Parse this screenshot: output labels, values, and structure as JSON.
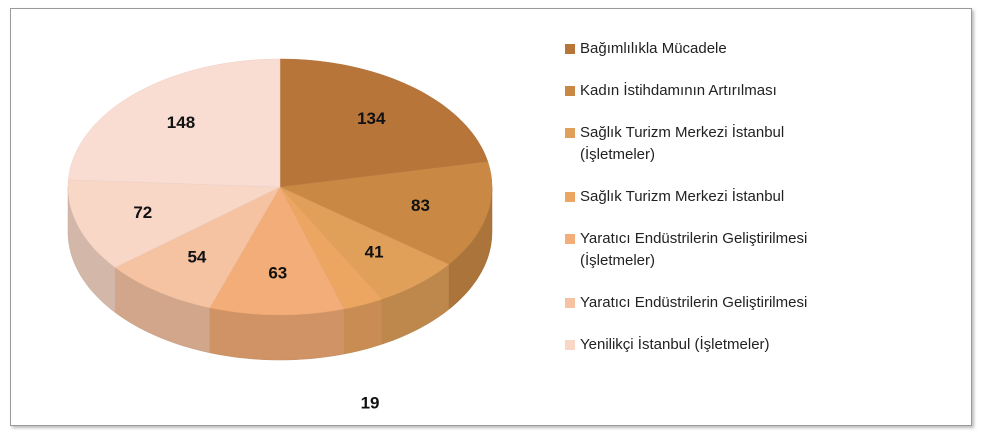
{
  "chart_data": {
    "type": "pie3d",
    "categories": [
      "Bağımlılıkla Mücadele",
      "Kadın İstihdamının Artırılması",
      "Sağlık Turizm Merkezi İstanbul (İşletmeler)",
      "Sağlık Turizm Merkezi İstanbul",
      "Yaratıcı Endüstrilerin Geliştirilmesi (İşletmeler)",
      "Yaratıcı Endüstrilerin Geliştirilmesi",
      "Yenilikçi İstanbul (İşletmeler)",
      null
    ],
    "values": [
      134,
      83,
      41,
      19,
      63,
      54,
      72,
      148
    ],
    "colors": [
      "#b8753a",
      "#c98945",
      "#e0a05a",
      "#eda662",
      "#f3ad78",
      "#f6c3a2",
      "#f8d7c7",
      "#f9ddd3"
    ],
    "legend": "right"
  }
}
